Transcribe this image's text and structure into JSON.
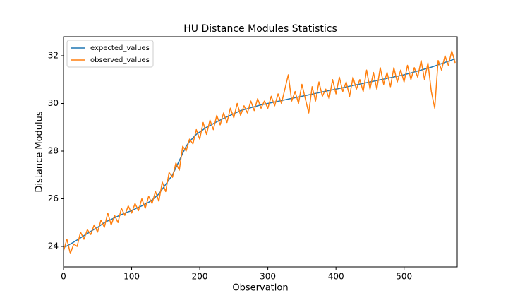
{
  "chart_data": {
    "type": "line",
    "title": "HU Distance Modules Statistics",
    "x_label": "Observation",
    "y_label": "Distance Modulus",
    "x": [
      0,
      5,
      10,
      15,
      20,
      25,
      30,
      35,
      40,
      45,
      50,
      55,
      60,
      65,
      70,
      75,
      80,
      85,
      90,
      95,
      100,
      105,
      110,
      115,
      120,
      125,
      130,
      135,
      140,
      145,
      150,
      155,
      160,
      165,
      170,
      175,
      180,
      185,
      190,
      195,
      200,
      205,
      210,
      215,
      220,
      225,
      230,
      235,
      240,
      245,
      250,
      255,
      260,
      265,
      270,
      275,
      280,
      285,
      290,
      295,
      300,
      305,
      310,
      315,
      320,
      325,
      330,
      335,
      340,
      345,
      350,
      355,
      360,
      365,
      370,
      375,
      380,
      385,
      390,
      395,
      400,
      405,
      410,
      415,
      420,
      425,
      430,
      435,
      440,
      445,
      450,
      455,
      460,
      465,
      470,
      475,
      480,
      485,
      490,
      495,
      500,
      505,
      510,
      515,
      520,
      525,
      530,
      535,
      540,
      545,
      550,
      555,
      560,
      565,
      570,
      575
    ],
    "series": [
      {
        "name": "expected_values",
        "color": "#1f77b4",
        "values": [
          23.95,
          24.02,
          24.1,
          24.18,
          24.27,
          24.36,
          24.45,
          24.54,
          24.63,
          24.72,
          24.8,
          24.9,
          25.0,
          25.07,
          25.13,
          25.2,
          25.27,
          25.33,
          25.4,
          25.45,
          25.5,
          25.57,
          25.64,
          25.7,
          25.78,
          25.85,
          25.95,
          26.07,
          26.2,
          26.4,
          26.6,
          26.8,
          27.0,
          27.3,
          27.6,
          27.9,
          28.2,
          28.4,
          28.55,
          28.7,
          28.8,
          28.9,
          29.0,
          29.07,
          29.15,
          29.23,
          29.3,
          29.37,
          29.44,
          29.5,
          29.57,
          29.63,
          29.7,
          29.74,
          29.78,
          29.82,
          29.86,
          29.9,
          29.94,
          29.97,
          30.0,
          30.03,
          30.06,
          30.09,
          30.12,
          30.15,
          30.18,
          30.21,
          30.24,
          30.27,
          30.3,
          30.33,
          30.36,
          30.39,
          30.42,
          30.45,
          30.48,
          30.51,
          30.54,
          30.57,
          30.6,
          30.63,
          30.66,
          30.69,
          30.72,
          30.75,
          30.78,
          30.81,
          30.84,
          30.87,
          30.9,
          30.93,
          30.96,
          30.99,
          31.02,
          31.05,
          31.08,
          31.11,
          31.14,
          31.17,
          31.2,
          31.24,
          31.28,
          31.32,
          31.36,
          31.4,
          31.44,
          31.48,
          31.52,
          31.57,
          31.62,
          31.67,
          31.72,
          31.77,
          31.82,
          31.87
        ]
      },
      {
        "name": "observed_values",
        "color": "#ff7f0e",
        "values": [
          23.8,
          24.3,
          23.7,
          24.1,
          24.0,
          24.6,
          24.3,
          24.7,
          24.5,
          24.9,
          24.6,
          25.1,
          24.8,
          25.4,
          24.9,
          25.3,
          25.0,
          25.6,
          25.3,
          25.7,
          25.4,
          25.8,
          25.5,
          26.0,
          25.6,
          26.1,
          25.8,
          26.3,
          25.9,
          26.7,
          26.3,
          27.1,
          26.9,
          27.5,
          27.2,
          28.2,
          28.0,
          28.5,
          28.3,
          28.9,
          28.5,
          29.2,
          28.7,
          29.3,
          28.9,
          29.5,
          29.1,
          29.6,
          29.2,
          29.8,
          29.4,
          30.0,
          29.5,
          29.9,
          29.6,
          30.1,
          29.7,
          30.2,
          29.8,
          30.1,
          29.8,
          30.3,
          29.9,
          30.4,
          30.0,
          30.6,
          31.2,
          30.1,
          30.5,
          30.0,
          30.8,
          30.2,
          29.6,
          30.7,
          30.1,
          30.9,
          30.3,
          30.6,
          30.2,
          31.0,
          30.4,
          31.1,
          30.5,
          30.9,
          30.3,
          31.1,
          30.6,
          31.0,
          30.5,
          31.4,
          30.6,
          31.3,
          30.6,
          31.5,
          30.8,
          31.3,
          30.7,
          31.5,
          30.9,
          31.4,
          30.9,
          31.6,
          31.0,
          31.5,
          31.1,
          31.8,
          31.0,
          31.7,
          30.5,
          29.8,
          31.8,
          31.4,
          32.0,
          31.6,
          32.2,
          31.7
        ]
      }
    ],
    "xlim": [
      0,
      578
    ],
    "ylim": [
      23.14,
      32.8
    ],
    "xticks": [
      0,
      100,
      200,
      300,
      400,
      500
    ],
    "yticks": [
      24,
      26,
      28,
      30,
      32
    ],
    "legend": "upper left"
  }
}
